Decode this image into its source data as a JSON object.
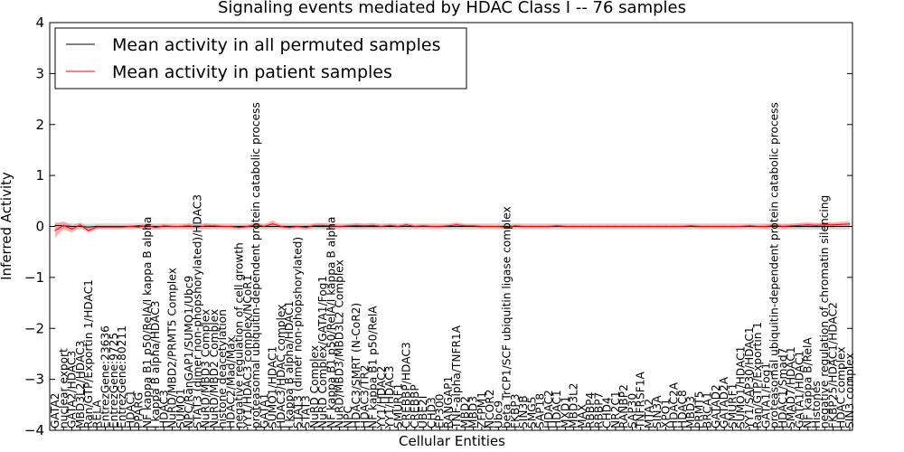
{
  "chart_data": {
    "type": "line",
    "title": "Signaling events mediated by HDAC Class I -- 76 samples",
    "xlabel": "Cellular Entities",
    "ylabel": "Inferred Activity",
    "ylim": [
      -4,
      4
    ],
    "yticks": [
      -4,
      -3,
      -2,
      -1,
      0,
      1,
      2,
      3,
      4
    ],
    "ytick_labels": [
      "−4",
      "−3",
      "−2",
      "−1",
      "0",
      "1",
      "2",
      "3",
      "4"
    ],
    "grid": false,
    "legend_position": "top-left",
    "categories": [
      "GATA2",
      "nuclear export",
      "GATA2/HDAC3",
      "MBD3L2/HDAC3",
      "Ran/GTP/Exportin 1/HDAC1",
      "RELA",
      "EntrezGene:23636",
      "EntrezGene:9725",
      "EntrezGene:80211",
      "HDAC1",
      "PPARG",
      "NF kappa B1 p50/RelA/I kappa B alpha",
      "I kappa B alpha/HDAC3",
      "HDAC3",
      "NuRD/MBD2/PRMT5 Complex",
      "SUMO1",
      "NPC/RanGAP1/SUMO1/Ubc9",
      "STAT3 (dimer non-phopshorylated)/HDAC3",
      "NuRD/MBD3 Complex",
      "NuRD/MBD2 Complex",
      "histone deacetylation",
      "HDAC2/Mad/Max",
      "negative regulation of cell growth",
      "YY1/HDAC3 complex/NCoR1",
      "proteasomal ubiquitin-dependent protein catabolic process",
      "GATA1",
      "SUMO1/HDAC1",
      "HDAC3/HDAC complex",
      "I kappa B alpha/HDAC1",
      "STAT3 (dimer non-phopshorylated)",
      "STAT3",
      "NuRD Complex",
      "NuRD Complex/GATA1/Fog1",
      "NF kappa B1 p50/RelA/I kappa B alpha",
      "NuRD/MBD3/MBD3L2 Complex",
      "NPC",
      "HDAC3/SMRT (N-CoR2)",
      "HDAC3/TR2",
      "NF kappa B1 p50/RelA",
      "YY1/HDAC2",
      "YY1/HDAC3",
      "SMURF1",
      "CREBBP/HDAC3",
      "CREBBP",
      "UBE2I",
      "CHD3",
      "EP300",
      "RANGAP1",
      "TNF-alpha/TNFR1A",
      "MBD2",
      "MBD3",
      "ZFPM1",
      "NCOR2",
      "Ubc9",
      "beta TrCP1/SCF ubiquitin ligase complex",
      "FKBP3",
      "SIN3B",
      "SMG5",
      "SAP18",
      "HDAC2",
      "HDAC1",
      "MXD1",
      "MBD3L2",
      "MAX",
      "RBBP4",
      "RBBP7",
      "CHD4",
      "NR2C1",
      "RANBP2",
      "SAP30",
      "TNFRSF1A",
      "MTA2",
      "SIN3A",
      "XPO1",
      "HDAC2A",
      "HDAC8",
      "MBD3",
      "PRMT5",
      "BRCA1",
      "GATAD2",
      "GATAD2A",
      "SMURF1",
      "SUMO1/HDAC1",
      "YY1/SAP30/HDAC1",
      "Ran/GTP/Exportin 1",
      "GATA1/Fog1",
      "proteasomal ubiquitin-dependent protein catabolic process",
      "HDAC1/Smad7",
      "SMAD7/HDAC1",
      "GATA1/HDAC1",
      "NF kappa B/RelA",
      "Histones",
      "negative regulation of chromatin silencing",
      "FKBP25/HDAC1/HDAC2",
      "HDAC complex",
      "SIN3 complex"
    ],
    "series": [
      {
        "name": "Mean activity in all permuted samples",
        "color": "#000000",
        "values": [
          0.02,
          0.01,
          0.0,
          0.0,
          -0.01,
          0.0,
          0.0,
          0.0,
          0.0,
          0.0,
          0.01,
          0.0,
          0.0,
          0.0,
          0.0,
          0.0,
          0.0,
          0.0,
          0.0,
          0.0,
          0.0,
          0.0,
          0.0,
          0.0,
          0.0,
          0.0,
          0.0,
          0.0,
          0.0,
          0.0,
          0.0,
          0.0,
          0.0,
          0.0,
          0.0,
          0.0,
          0.0,
          0.0,
          0.0,
          0.0,
          0.0,
          0.0,
          0.0,
          0.0,
          0.0,
          0.0,
          0.0,
          0.0,
          0.0,
          0.0,
          0.0,
          0.0,
          0.0,
          0.0,
          0.0,
          0.0,
          0.0,
          0.0,
          0.0,
          0.0,
          0.0,
          0.0,
          0.0,
          0.0,
          0.0,
          0.0,
          0.0,
          0.0,
          0.0,
          0.0,
          0.0,
          0.0,
          0.0,
          0.0,
          0.0,
          0.0,
          0.0,
          0.0,
          0.0,
          0.0,
          0.0,
          0.0,
          0.0,
          0.0,
          0.0,
          0.0,
          0.0,
          0.0,
          0.0,
          0.0,
          0.0,
          0.0,
          0.0,
          0.0,
          0.0,
          0.0
        ]
      },
      {
        "name": "Mean activity in patient samples",
        "color": "#ff0000",
        "band_color": "#ff7f7f",
        "values": [
          -0.08,
          0.02,
          -0.05,
          0.03,
          -0.08,
          -0.01,
          -0.01,
          -0.01,
          -0.01,
          0.0,
          -0.01,
          0.02,
          -0.02,
          0.01,
          0.0,
          0.0,
          0.01,
          -0.01,
          0.01,
          0.01,
          0.0,
          0.0,
          -0.02,
          0.0,
          0.03,
          0.0,
          0.05,
          0.0,
          -0.02,
          0.0,
          -0.02,
          0.02,
          0.02,
          0.01,
          0.0,
          0.01,
          0.02,
          0.01,
          0.02,
          0.0,
          0.02,
          0.0,
          0.03,
          0.0,
          0.01,
          0.0,
          0.0,
          0.01,
          0.03,
          0.01,
          0.01,
          0.0,
          0.0,
          0.0,
          -0.02,
          0.01,
          0.0,
          0.0,
          0.0,
          0.0,
          0.01,
          0.0,
          0.0,
          0.0,
          0.0,
          0.0,
          0.0,
          0.0,
          0.0,
          0.0,
          0.0,
          0.0,
          0.0,
          0.0,
          0.0,
          0.0,
          0.01,
          0.0,
          0.0,
          0.0,
          0.0,
          0.0,
          0.0,
          0.01,
          0.0,
          0.0,
          0.02,
          0.0,
          0.01,
          0.02,
          0.03,
          0.02,
          0.03,
          0.03,
          0.04,
          0.05
        ],
        "band_halfwidth": [
          0.14,
          0.08,
          0.07,
          0.05,
          0.05,
          0.04,
          0.03,
          0.03,
          0.03,
          0.03,
          0.03,
          0.05,
          0.04,
          0.04,
          0.03,
          0.03,
          0.05,
          0.03,
          0.05,
          0.04,
          0.03,
          0.03,
          0.04,
          0.03,
          0.05,
          0.03,
          0.07,
          0.03,
          0.04,
          0.03,
          0.04,
          0.04,
          0.05,
          0.04,
          0.03,
          0.03,
          0.05,
          0.04,
          0.05,
          0.03,
          0.04,
          0.03,
          0.04,
          0.03,
          0.03,
          0.03,
          0.03,
          0.03,
          0.05,
          0.03,
          0.03,
          0.03,
          0.03,
          0.03,
          0.04,
          0.03,
          0.03,
          0.03,
          0.03,
          0.03,
          0.03,
          0.03,
          0.03,
          0.03,
          0.03,
          0.03,
          0.03,
          0.03,
          0.03,
          0.03,
          0.03,
          0.03,
          0.03,
          0.03,
          0.03,
          0.03,
          0.03,
          0.03,
          0.03,
          0.03,
          0.03,
          0.03,
          0.03,
          0.03,
          0.03,
          0.04,
          0.04,
          0.04,
          0.04,
          0.05,
          0.05,
          0.05,
          0.05,
          0.05,
          0.05,
          0.05
        ]
      }
    ],
    "permuted_band_halfwidth": 0.06
  }
}
